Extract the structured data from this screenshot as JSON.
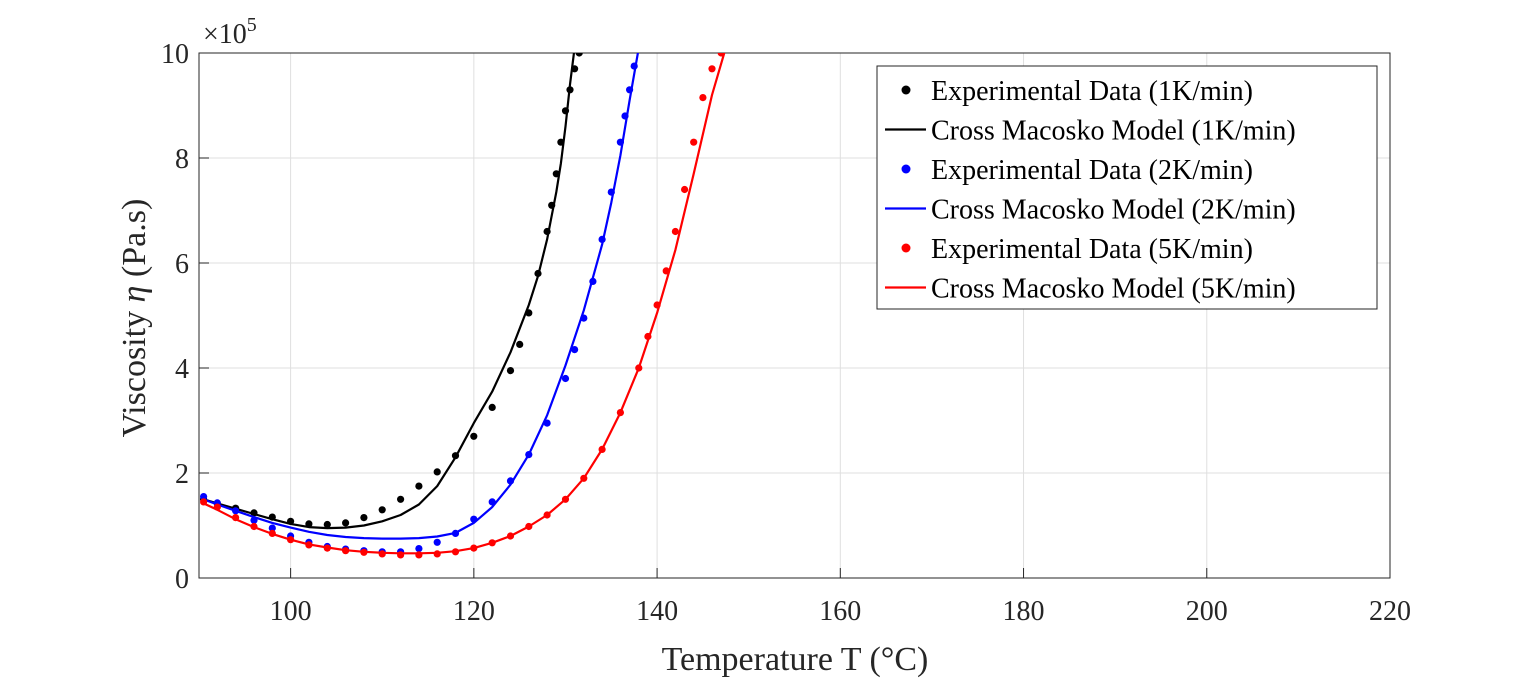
{
  "chart_data": {
    "type": "line",
    "xlabel": "Temperature T (°C)",
    "ylabel_text": "Viscosity ",
    "ylabel_symbol": "η",
    "ylabel_unit": " (Pa.s)",
    "y_multiplier_prefix": "×10",
    "y_multiplier_exp": "5",
    "xlim": [
      90,
      220
    ],
    "ylim": [
      0,
      10
    ],
    "x_ticks": [
      100,
      120,
      140,
      160,
      180,
      200,
      220
    ],
    "y_ticks": [
      0,
      2,
      4,
      6,
      8,
      10
    ],
    "x_tick_labels": [
      "100",
      "120",
      "140",
      "160",
      "180",
      "200",
      "220"
    ],
    "y_tick_labels": [
      "0",
      "2",
      "4",
      "6",
      "8",
      "10"
    ],
    "grid": true,
    "legend_position": "top-right",
    "series": [
      {
        "name": "Experimental Data (1K/min)",
        "kind": "markers",
        "color": "#000000",
        "x": [
          90.5,
          92,
          94,
          96,
          98,
          100,
          102,
          104,
          106,
          108,
          110,
          112,
          114,
          116,
          118,
          120,
          122,
          124,
          125,
          126,
          127,
          128,
          128.5,
          129,
          129.5,
          130,
          130.5,
          131,
          131.5
        ],
        "y": [
          1.5,
          1.42,
          1.33,
          1.24,
          1.16,
          1.08,
          1.03,
          1.02,
          1.05,
          1.15,
          1.3,
          1.5,
          1.75,
          2.02,
          2.33,
          2.7,
          3.25,
          3.95,
          4.45,
          5.05,
          5.8,
          6.6,
          7.1,
          7.7,
          8.3,
          8.9,
          9.3,
          9.7,
          10.0
        ]
      },
      {
        "name": "Cross Macosko Model (1K/min)",
        "kind": "line",
        "color": "#000000",
        "x": [
          90.5,
          92,
          94,
          96,
          98,
          100,
          102,
          104,
          106,
          108,
          110,
          112,
          114,
          116,
          118,
          120,
          122,
          124,
          126,
          127,
          128,
          129,
          129.5,
          130,
          130.5,
          131
        ],
        "y": [
          1.5,
          1.42,
          1.32,
          1.22,
          1.12,
          1.03,
          0.97,
          0.95,
          0.96,
          1.0,
          1.08,
          1.2,
          1.4,
          1.75,
          2.3,
          2.95,
          3.55,
          4.3,
          5.2,
          5.75,
          6.45,
          7.35,
          7.9,
          8.6,
          9.4,
          10.1
        ]
      },
      {
        "name": "Experimental Data (2K/min)",
        "kind": "markers",
        "color": "#0000ff",
        "x": [
          90.5,
          92,
          94,
          96,
          98,
          100,
          102,
          104,
          106,
          108,
          110,
          112,
          114,
          116,
          118,
          120,
          122,
          124,
          126,
          128,
          130,
          131,
          132,
          133,
          134,
          135,
          136,
          136.5,
          137,
          137.5
        ],
        "y": [
          1.55,
          1.43,
          1.28,
          1.1,
          0.95,
          0.8,
          0.68,
          0.6,
          0.55,
          0.52,
          0.5,
          0.5,
          0.56,
          0.68,
          0.85,
          1.12,
          1.45,
          1.85,
          2.35,
          2.95,
          3.8,
          4.35,
          4.95,
          5.65,
          6.45,
          7.35,
          8.3,
          8.8,
          9.3,
          9.75
        ]
      },
      {
        "name": "Cross Macosko Model (2K/min)",
        "kind": "line",
        "color": "#0000ff",
        "x": [
          90.5,
          92,
          94,
          96,
          98,
          100,
          102,
          104,
          106,
          108,
          110,
          112,
          114,
          116,
          118,
          120,
          122,
          124,
          126,
          128,
          130,
          132,
          134,
          135,
          136,
          137,
          138
        ],
        "y": [
          1.5,
          1.4,
          1.28,
          1.16,
          1.05,
          0.96,
          0.88,
          0.82,
          0.78,
          0.76,
          0.75,
          0.75,
          0.76,
          0.79,
          0.86,
          1.05,
          1.35,
          1.78,
          2.35,
          3.1,
          4.05,
          5.1,
          6.35,
          7.15,
          8.05,
          9.1,
          10.1
        ]
      },
      {
        "name": "Experimental Data (5K/min)",
        "kind": "markers",
        "color": "#ff0000",
        "x": [
          90.5,
          92,
          94,
          96,
          98,
          100,
          102,
          104,
          106,
          108,
          110,
          112,
          114,
          116,
          118,
          120,
          122,
          124,
          126,
          128,
          130,
          132,
          134,
          136,
          138,
          139,
          140,
          141,
          142,
          143,
          144,
          145,
          146,
          147
        ],
        "y": [
          1.45,
          1.35,
          1.15,
          0.98,
          0.85,
          0.73,
          0.63,
          0.57,
          0.52,
          0.49,
          0.46,
          0.44,
          0.44,
          0.46,
          0.5,
          0.57,
          0.67,
          0.8,
          0.98,
          1.2,
          1.5,
          1.9,
          2.45,
          3.15,
          4.0,
          4.6,
          5.2,
          5.85,
          6.6,
          7.4,
          8.3,
          9.15,
          9.7,
          10.0
        ]
      },
      {
        "name": "Cross Macosko Model (5K/min)",
        "kind": "line",
        "color": "#ff0000",
        "x": [
          90.5,
          92,
          94,
          96,
          98,
          100,
          102,
          104,
          106,
          108,
          110,
          112,
          114,
          116,
          118,
          120,
          122,
          124,
          126,
          128,
          130,
          132,
          134,
          136,
          138,
          140,
          142,
          144,
          146,
          147.5
        ],
        "y": [
          1.42,
          1.3,
          1.12,
          0.97,
          0.84,
          0.73,
          0.64,
          0.58,
          0.53,
          0.5,
          0.48,
          0.47,
          0.47,
          0.48,
          0.51,
          0.57,
          0.67,
          0.8,
          0.98,
          1.2,
          1.5,
          1.9,
          2.45,
          3.15,
          4.0,
          5.05,
          6.25,
          7.7,
          9.2,
          10.1
        ]
      }
    ]
  }
}
